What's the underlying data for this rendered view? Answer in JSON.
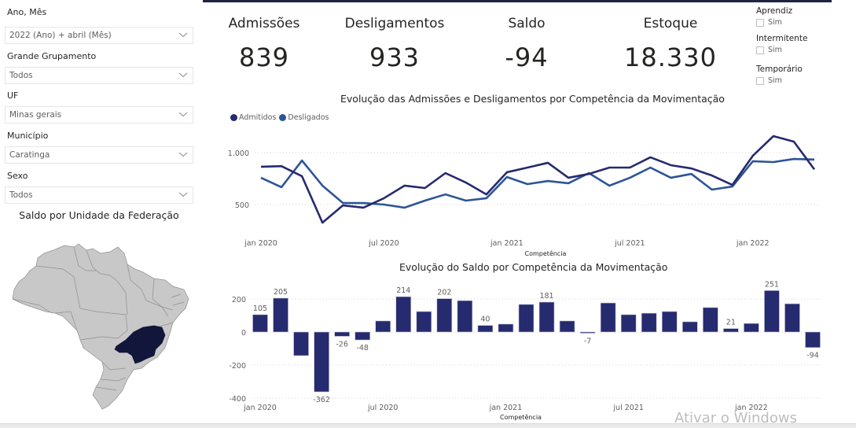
{
  "filters": {
    "ano_mes": {
      "label": "Ano, Mês",
      "value": "2022 (Ano) + abril (Mês)"
    },
    "grande_grupamento": {
      "label": "Grande Grupamento",
      "value": "Todos"
    },
    "uf": {
      "label": "UF",
      "value": "Minas gerais"
    },
    "municipio": {
      "label": "Município",
      "value": "Caratinga"
    },
    "sexo": {
      "label": "Sexo",
      "value": "Todos"
    }
  },
  "map": {
    "title": "Saldo por Unidade da Federação",
    "highlighted_state": "Minas Gerais",
    "base_color": "#c8c8c8",
    "highlight_color": "#12163b"
  },
  "kpis": [
    {
      "title": "Admissões",
      "value": "839"
    },
    {
      "title": "Desligamentos",
      "value": "933"
    },
    {
      "title": "Saldo",
      "value": "-94"
    },
    {
      "title": "Estoque",
      "value": "18.330"
    }
  ],
  "checkbox_filters": [
    {
      "title": "Aprendiz",
      "option": "Sim",
      "checked": false
    },
    {
      "title": "Intermitente",
      "option": "Sim",
      "checked": false
    },
    {
      "title": "Temporário",
      "option": "Sim",
      "checked": false
    }
  ],
  "watermark": "Ativar o Windows",
  "chart_data": [
    {
      "type": "line",
      "title": "Evolução das Admissões e Desligamentos por Competência da Movimentação",
      "xlabel": "Competência",
      "ylabel": "",
      "ylim": [
        250,
        1200
      ],
      "yticks": [
        500,
        1000
      ],
      "ytick_labels": [
        "500",
        "1.000"
      ],
      "xtick_labels": [
        "jan 2020",
        "jul 2020",
        "jan 2021",
        "jul 2021",
        "jan 2022"
      ],
      "xtick_indices": [
        0,
        6,
        12,
        18,
        24
      ],
      "legend_position": "top-left",
      "grid": true,
      "x": [
        "jan 2020",
        "fev 2020",
        "mar 2020",
        "abr 2020",
        "mai 2020",
        "jun 2020",
        "jul 2020",
        "ago 2020",
        "set 2020",
        "out 2020",
        "nov 2020",
        "dez 2020",
        "jan 2021",
        "fev 2021",
        "mar 2021",
        "abr 2021",
        "mai 2021",
        "jun 2021",
        "jul 2021",
        "ago 2021",
        "set 2021",
        "out 2021",
        "nov 2021",
        "dez 2021",
        "jan 2022",
        "fev 2022",
        "mar 2022",
        "abr 2022"
      ],
      "series": [
        {
          "name": "Admitidos",
          "color": "#262a6e",
          "values": [
            864,
            870,
            773,
            326,
            492,
            470,
            561,
            682,
            659,
            803,
            712,
            598,
            811,
            856,
            902,
            758,
            795,
            856,
            856,
            955,
            879,
            848,
            780,
            689,
            970,
            1159,
            1106,
            839
          ]
        },
        {
          "name": "Desligados",
          "color": "#2c5596",
          "values": [
            758,
            667,
            924,
            682,
            515,
            515,
            500,
            470,
            538,
            598,
            538,
            561,
            765,
            697,
            727,
            705,
            803,
            682,
            758,
            856,
            758,
            795,
            644,
            674,
            917,
            909,
            939,
            933
          ]
        }
      ]
    },
    {
      "type": "bar",
      "title": "Evolução do Saldo por Competência da Movimentação",
      "xlabel": "Competência",
      "ylabel": "",
      "ylim": [
        -400,
        260
      ],
      "yticks": [
        -400,
        -200,
        0,
        200
      ],
      "ytick_labels": [
        "-400",
        "-200",
        "0",
        "200"
      ],
      "xtick_labels": [
        "jan 2020",
        "jul 2020",
        "jan 2021",
        "jul 2021",
        "jan 2022"
      ],
      "xtick_indices": [
        0,
        6,
        12,
        18,
        24
      ],
      "grid": true,
      "color": "#262a6e",
      "categories": [
        "jan 2020",
        "fev 2020",
        "mar 2020",
        "abr 2020",
        "mai 2020",
        "jun 2020",
        "jul 2020",
        "ago 2020",
        "set 2020",
        "out 2020",
        "nov 2020",
        "dez 2020",
        "jan 2021",
        "fev 2021",
        "mar 2021",
        "abr 2021",
        "mai 2021",
        "jun 2021",
        "jul 2021",
        "ago 2021",
        "set 2021",
        "out 2021",
        "nov 2021",
        "dez 2021",
        "jan 2022",
        "fev 2022",
        "mar 2022",
        "abr 2022"
      ],
      "values": [
        105,
        205,
        -143,
        -362,
        -26,
        -48,
        67,
        214,
        124,
        202,
        190,
        40,
        48,
        167,
        181,
        67,
        -7,
        176,
        105,
        114,
        124,
        62,
        148,
        21,
        52,
        251,
        171,
        -94
      ],
      "data_labels": [
        "105",
        "205",
        "",
        "-362",
        "-26",
        "-48",
        "",
        "214",
        "",
        "202",
        "",
        "40",
        "",
        "",
        "181",
        "",
        "-7",
        "",
        "",
        "",
        "",
        "",
        "",
        "21",
        "",
        "251",
        "",
        "-94"
      ]
    }
  ]
}
